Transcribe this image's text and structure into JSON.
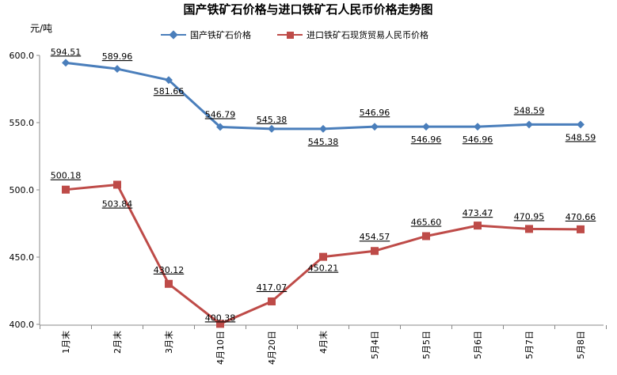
{
  "chart_data": {
    "type": "line",
    "title": "国产铁矿石价格与进口铁矿石人民币价格走势图",
    "unit": "元/吨",
    "categories": [
      "1月末",
      "2月末",
      "3月末",
      "4月10日",
      "4月20日",
      "4月末",
      "5月4日",
      "5月5日",
      "5月6日",
      "5月7日",
      "5月8日"
    ],
    "y_ticks": [
      "600.0",
      "550.0",
      "500.0",
      "450.0",
      "400.0"
    ],
    "ylim": [
      400,
      600
    ],
    "legend_position": "top",
    "grid": false,
    "series": [
      {
        "name": "国产铁矿石价格",
        "color": "#4A7EBB",
        "marker": "diamond",
        "values": [
          594.51,
          589.96,
          581.66,
          546.79,
          545.38,
          545.38,
          546.96,
          546.96,
          546.96,
          548.59,
          548.59
        ],
        "labels": [
          "594.51",
          "589.96",
          "581.66",
          "546.79",
          "545.38",
          "545.38",
          "546.96",
          "546.96",
          "546.96",
          "548.59",
          "548.59"
        ]
      },
      {
        "name": "进口铁矿石现货贸易人民币价格",
        "color": "#BE4B48",
        "marker": "square",
        "values": [
          500.18,
          503.84,
          430.12,
          400.38,
          417.07,
          450.21,
          454.57,
          465.6,
          473.47,
          470.95,
          470.66
        ],
        "labels": [
          "500.18",
          "503.84",
          "430.12",
          "400.38",
          "417.07",
          "450.21",
          "454.57",
          "465.60",
          "473.47",
          "470.95",
          "470.66"
        ]
      }
    ]
  }
}
